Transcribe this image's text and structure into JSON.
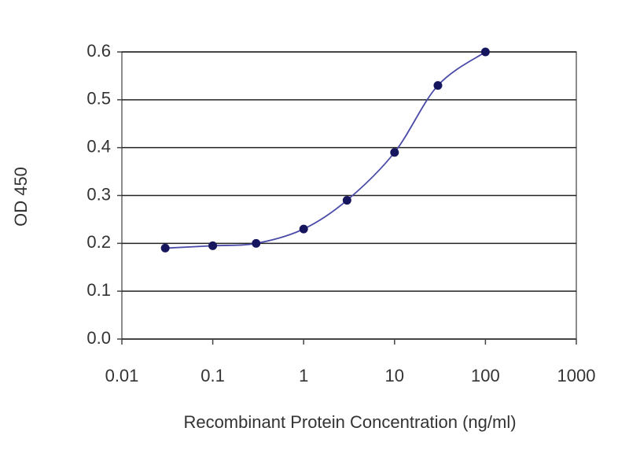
{
  "chart_data": {
    "type": "scatter",
    "xlabel": "Recombinant Protein Concentration (ng/ml)",
    "ylabel": "OD 450",
    "series": [
      {
        "color": "#16165e",
        "line_color": "#4a4aa8",
        "x": [
          0.03,
          0.1,
          0.3,
          1,
          3,
          10,
          30,
          100
        ],
        "values": [
          0.19,
          0.195,
          0.2,
          0.23,
          0.29,
          0.39,
          0.53,
          0.6
        ]
      }
    ],
    "xlim": [
      0.01,
      1000
    ],
    "xticks": [
      0.01,
      0.1,
      1,
      10,
      100,
      1000
    ],
    "log_x": true,
    "ylim": [
      0,
      0.6
    ],
    "yticks": [
      {
        "value": 0,
        "label": "0.0"
      },
      0.1,
      0.2,
      0.3,
      0.4,
      0.5,
      0.6
    ],
    "grid": true
  }
}
